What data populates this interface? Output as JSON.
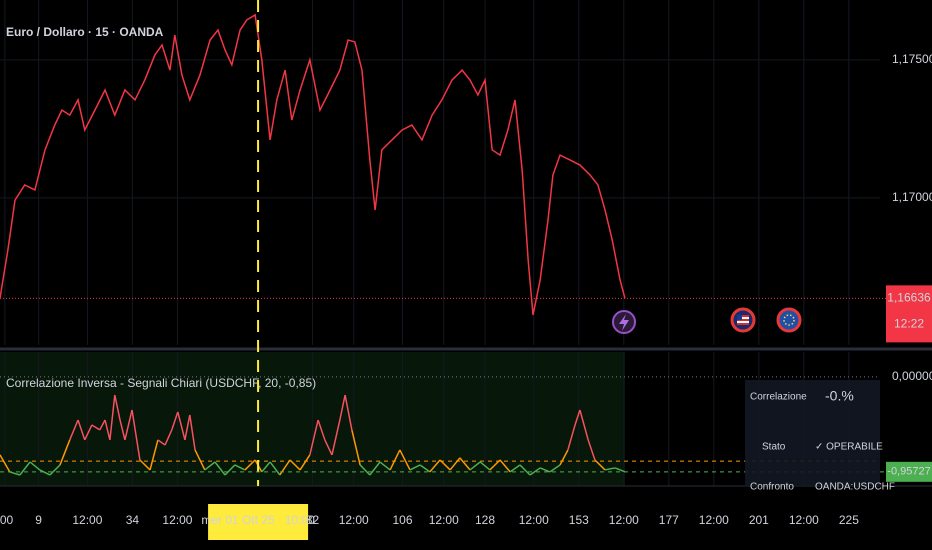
{
  "chart_data": [
    {
      "type": "line",
      "title": "Euro / Dollaro · 15 · OANDA",
      "color": "#f23645",
      "x": [
        -1.3,
        0.8,
        2.7,
        5.3,
        8,
        10.7,
        13.3,
        15.2,
        17.3,
        19.5,
        21.3,
        24,
        26.7,
        29.3,
        32,
        34.7,
        37.3,
        40,
        41.9,
        44,
        45.3,
        47.2,
        49.3,
        52,
        54.7,
        56.8,
        58.7,
        60.5,
        62.7,
        64.5,
        66.7,
        68.5,
        70.7,
        72.5,
        74.7,
        76.5,
        78.7,
        81.3,
        84,
        86.7,
        89.3,
        91.5,
        93.3,
        95.2,
        97.3,
        98.7,
        100.5,
        103.2,
        105.9,
        108.5,
        111.2,
        113.9,
        116.5,
        119.2,
        121.9,
        124,
        126.1,
        128,
        129.9,
        132,
        134.1,
        136,
        137.9,
        139.5,
        140.8,
        142.7,
        144.8,
        146.1,
        148,
        150.7,
        153.3,
        156,
        158.1,
        160,
        161.9,
        164,
        165.3
      ],
      "values": [
        1.16637,
        1.16811,
        1.16992,
        1.17047,
        1.17029,
        1.17174,
        1.17264,
        1.17318,
        1.173,
        1.17355,
        1.17246,
        1.17318,
        1.17391,
        1.173,
        1.17391,
        1.17355,
        1.17427,
        1.17518,
        1.17554,
        1.17463,
        1.1759,
        1.17445,
        1.17355,
        1.17445,
        1.17572,
        1.17608,
        1.17536,
        1.17482,
        1.17608,
        1.17645,
        1.17663,
        1.175,
        1.1721,
        1.17355,
        1.17463,
        1.17282,
        1.17391,
        1.175,
        1.17318,
        1.17391,
        1.17463,
        1.17572,
        1.17565,
        1.17463,
        1.17137,
        1.16956,
        1.17174,
        1.1721,
        1.17246,
        1.17264,
        1.1721,
        1.173,
        1.17355,
        1.17427,
        1.17463,
        1.17427,
        1.17373,
        1.17427,
        1.17174,
        1.17155,
        1.17246,
        1.17355,
        1.17101,
        1.16775,
        1.16576,
        1.16703,
        1.1692,
        1.17083,
        1.17155,
        1.17137,
        1.17119,
        1.17083,
        1.17047,
        1.16956,
        1.16848,
        1.16703,
        1.16636
      ],
      "xlim": [
        -1.3,
        233.3
      ],
      "ylim": [
        1.16467,
        1.17717
      ],
      "yticks": [
        {
          "value": 1.175,
          "label": "1,17500"
        },
        {
          "value": 1.17,
          "label": "1,17000"
        }
      ],
      "price_label": {
        "value": 1.16636,
        "label": "1,16636"
      },
      "countdown": "12:22",
      "crosshair": {
        "x": 67.5,
        "label": "mer 01 Ott 25   10:00"
      }
    },
    {
      "type": "line",
      "title": "Correlazione Inversa - Segnali Chiari (USDCHF, 20, -0,85)",
      "colors": {
        "above": "#f7525f",
        "cross": "#ff9800",
        "below": "#4caf50"
      },
      "threshold": -0.85,
      "x": [
        -1.3,
        1.3,
        4,
        6.7,
        9.3,
        12,
        14.7,
        17.3,
        19.5,
        21.3,
        23.2,
        25.3,
        26.7,
        28,
        29.3,
        30.7,
        32,
        33.9,
        36,
        38.7,
        40.8,
        42.7,
        44.5,
        46.1,
        48,
        49.3,
        50.7,
        53.3,
        56,
        58.7,
        61.3,
        64,
        66.7,
        68.5,
        70.7,
        73.3,
        76,
        78.7,
        81.3,
        83.5,
        85.3,
        87.2,
        89.3,
        90.7,
        92.5,
        94.7,
        97.3,
        100,
        102.7,
        105.3,
        108,
        110.7,
        113.3,
        116,
        118.7,
        121.3,
        124,
        126.7,
        129.3,
        132,
        134.7,
        137.3,
        140,
        142.7,
        145.3,
        148,
        150.1,
        152,
        153.3,
        155.5,
        157.3,
        160,
        162.7,
        165.3
      ],
      "values": [
        -0.787,
        -0.958,
        -0.989,
        -0.858,
        -0.938,
        -0.989,
        -0.888,
        -0.636,
        -0.435,
        -0.636,
        -0.485,
        -0.535,
        -0.435,
        -0.636,
        -0.183,
        -0.435,
        -0.636,
        -0.334,
        -0.838,
        -0.938,
        -0.636,
        -0.687,
        -0.535,
        -0.354,
        -0.636,
        -0.384,
        -0.737,
        -0.938,
        -0.858,
        -0.989,
        -0.888,
        -0.938,
        -0.838,
        -0.958,
        -0.858,
        -0.989,
        -0.838,
        -0.938,
        -0.787,
        -0.435,
        -0.636,
        -0.787,
        -0.435,
        -0.183,
        -0.535,
        -0.888,
        -0.989,
        -0.858,
        -0.938,
        -0.737,
        -0.938,
        -0.888,
        -0.958,
        -0.838,
        -0.938,
        -0.817,
        -0.938,
        -0.858,
        -0.938,
        -0.838,
        -0.958,
        -0.888,
        -0.989,
        -0.918,
        -0.958,
        -0.888,
        -0.737,
        -0.485,
        -0.334,
        -0.636,
        -0.838,
        -0.938,
        -0.918,
        -0.95727
      ],
      "xlim": [
        -1.3,
        233.3
      ],
      "ylim": [
        -1.1,
        0.25
      ],
      "yticks": [
        {
          "value": 0,
          "label": "0,00000"
        }
      ],
      "last_label": {
        "value": -0.95727,
        "label": "-0,95727"
      },
      "xticks": [
        {
          "value": 0,
          "label": ":00"
        },
        9,
        {
          "value": 22,
          "label": "12:00"
        },
        34,
        {
          "value": 46,
          "label": "12:00"
        },
        82,
        {
          "value": 93,
          "label": "12:00"
        },
        106,
        {
          "value": 117,
          "label": "12:00"
        },
        128,
        {
          "value": 141,
          "label": "12:00"
        },
        153,
        {
          "value": 165,
          "label": "12:00"
        },
        177,
        {
          "value": 189,
          "label": "12:00"
        },
        201,
        {
          "value": 213,
          "label": "12:00"
        },
        225
      ],
      "table": [
        [
          "Correlazione",
          "-0.%"
        ],
        [
          "Stato",
          "✓ OPERABILE"
        ],
        [
          "Confronto",
          "OANDA:USDCHF"
        ]
      ]
    }
  ]
}
